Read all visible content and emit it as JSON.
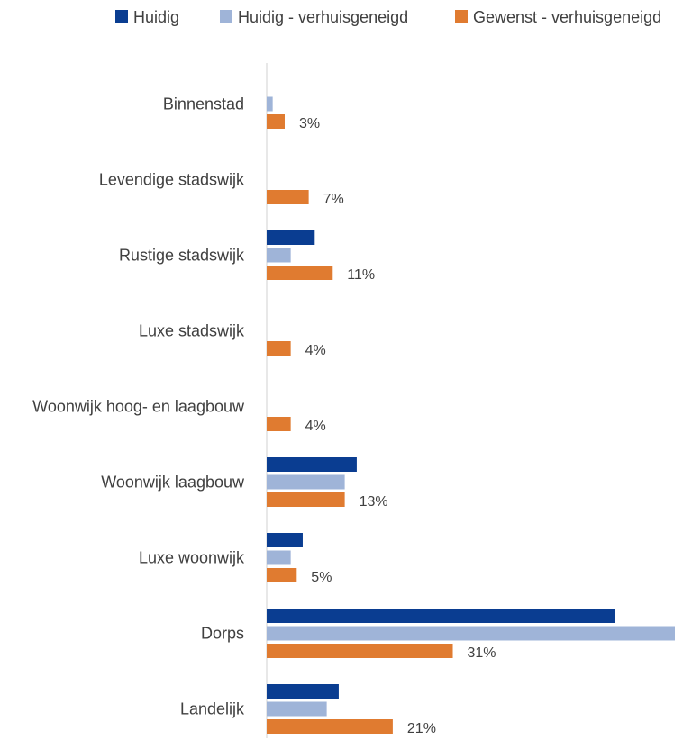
{
  "chart_data": {
    "type": "bar",
    "orientation": "horizontal",
    "categories": [
      "Binnenstad",
      "Levendige stadswijk",
      "Rustige stadswijk",
      "Luxe stadswijk",
      "Woonwijk hoog- en laagbouw",
      "Woonwijk laagbouw",
      "Luxe woonwijk",
      "Dorps",
      "Landelijk"
    ],
    "series": [
      {
        "name": "Huidig",
        "color": "#0a3d91",
        "values": [
          0,
          0,
          8,
          0,
          0,
          15,
          6,
          58,
          12
        ]
      },
      {
        "name": "Huidig - verhuisgeneigd",
        "color": "#9fb4d8",
        "values": [
          1,
          0,
          4,
          0,
          0,
          13,
          4,
          68,
          10
        ]
      },
      {
        "name": "Gewenst - verhuisgeneigd",
        "color": "#e07b30",
        "values": [
          3,
          7,
          11,
          4,
          4,
          13,
          5,
          31,
          21
        ]
      }
    ],
    "data_labels": [
      "3%",
      "7%",
      "11%",
      "4%",
      "4%",
      "13%",
      "5%",
      "31%",
      "21%"
    ],
    "data_label_series": 2,
    "legend_position": "top",
    "grid": false,
    "xlim": [
      0,
      68
    ]
  }
}
